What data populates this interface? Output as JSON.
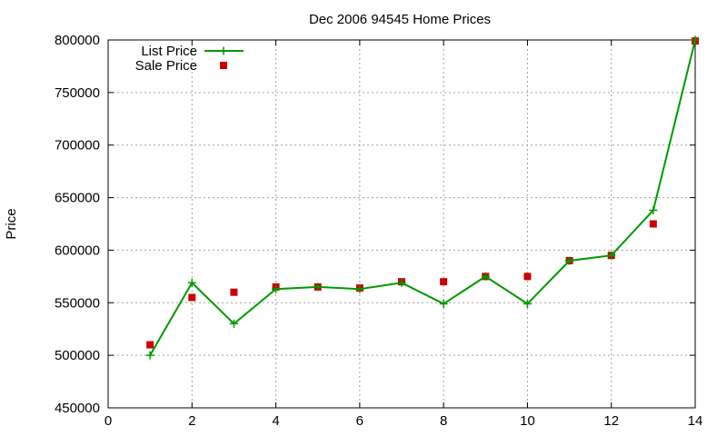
{
  "chart_data": {
    "type": "line",
    "title": "Dec 2006 94545 Home Prices",
    "xlabel": "",
    "ylabel": "Price",
    "xlim": [
      0,
      14
    ],
    "ylim": [
      450000,
      800000
    ],
    "xticks": [
      0,
      2,
      4,
      6,
      8,
      10,
      12,
      14
    ],
    "yticks": [
      450000,
      500000,
      550000,
      600000,
      650000,
      700000,
      750000,
      800000
    ],
    "x_tick_labels": [
      "0",
      "2",
      "4",
      "6",
      "8",
      "10",
      "12",
      "14"
    ],
    "y_tick_labels": [
      "450000",
      "500000",
      "550000",
      "600000",
      "650000",
      "700000",
      "750000",
      "800000"
    ],
    "grid": true,
    "legend_position": "top-left",
    "series": [
      {
        "name": "List Price",
        "kind": "line-with-plus-markers",
        "color": "#009900",
        "x": [
          1,
          2,
          3,
          4,
          5,
          6,
          7,
          8,
          9,
          10,
          11,
          12,
          13,
          14
        ],
        "y": [
          500000,
          569000,
          530000,
          563000,
          565000,
          563000,
          569000,
          549000,
          575000,
          549000,
          590000,
          595000,
          638000,
          800000
        ]
      },
      {
        "name": "Sale Price",
        "kind": "square-markers",
        "color": "#cc0000",
        "x": [
          1,
          2,
          3,
          4,
          5,
          6,
          7,
          8,
          9,
          10,
          11,
          12,
          13,
          14
        ],
        "y": [
          510000,
          555000,
          560000,
          565000,
          565000,
          564000,
          570000,
          570000,
          575000,
          575000,
          590000,
          595000,
          625000,
          799000
        ]
      }
    ]
  }
}
